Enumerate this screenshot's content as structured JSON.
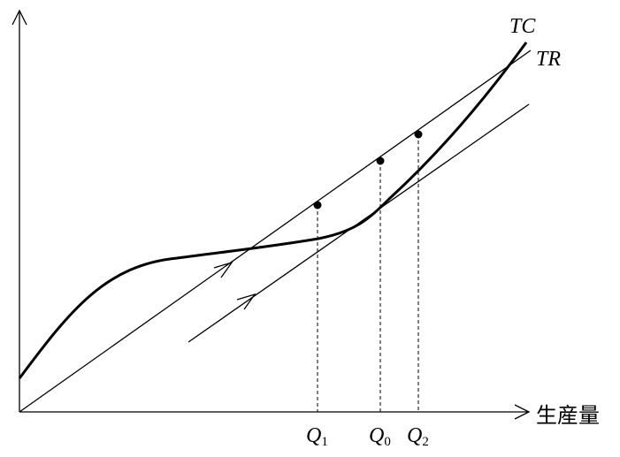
{
  "curves": {
    "tc": "TC",
    "tr": "TR"
  },
  "x_axis_label": "生産量",
  "quantities": [
    {
      "letter": "Q",
      "sub": "1"
    },
    {
      "letter": "Q",
      "sub": "0"
    },
    {
      "letter": "Q",
      "sub": "2"
    }
  ]
}
